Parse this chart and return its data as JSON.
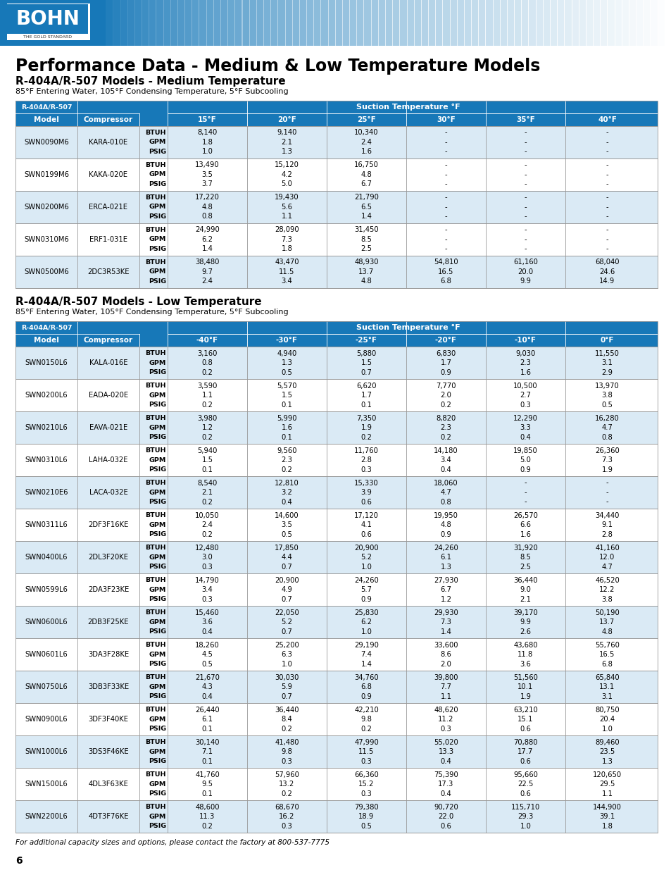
{
  "title": "Performance Data - Medium & Low Temperature Models",
  "medium_section_title": "R-404A/R-507 Models - Medium Temperature",
  "medium_subtitle": "85°F Entering Water, 105°F Condensing Temperature, 5°F Subcooling",
  "low_section_title": "R-404A/R-507 Models - Low Temperature",
  "low_subtitle": "85°F Entering Water, 105°F Condensing Temperature, 5°F Subcooling",
  "footer": "For additional capacity sizes and options, please contact the factory at 800-537-7775",
  "page_num": "6",
  "header_bg": "#1778b8",
  "row_alt_bg": "#daeaf5",
  "row_white_bg": "#ffffff",
  "border_color": "#aaaaaa",
  "header_text_color": "#ffffff",
  "medium_temp_cols": [
    "15°F",
    "20°F",
    "25°F",
    "30°F",
    "35°F",
    "40°F"
  ],
  "medium_suction_header": "Suction Temperature °F",
  "medium_rows": [
    [
      "SWN0090M6",
      "KARA-010E",
      [
        "8,140",
        "1.8",
        "1.0"
      ],
      [
        "9,140",
        "2.1",
        "1.3"
      ],
      [
        "10,340",
        "2.4",
        "1.6"
      ],
      [
        "-",
        "-",
        "-"
      ],
      [
        "-",
        "-",
        "-"
      ],
      [
        "-",
        "-",
        "-"
      ]
    ],
    [
      "SWN0199M6",
      "KAKA-020E",
      [
        "13,490",
        "3.5",
        "3.7"
      ],
      [
        "15,120",
        "4.2",
        "5.0"
      ],
      [
        "16,750",
        "4.8",
        "6.7"
      ],
      [
        "-",
        "-",
        "-"
      ],
      [
        "-",
        "-",
        "-"
      ],
      [
        "-",
        "-",
        "-"
      ]
    ],
    [
      "SWN0200M6",
      "ERCA-021E",
      [
        "17,220",
        "4.8",
        "0.8"
      ],
      [
        "19,430",
        "5.6",
        "1.1"
      ],
      [
        "21,790",
        "6.5",
        "1.4"
      ],
      [
        "-",
        "-",
        "-"
      ],
      [
        "-",
        "-",
        "-"
      ],
      [
        "-",
        "-",
        "-"
      ]
    ],
    [
      "SWN0310M6",
      "ERF1-031E",
      [
        "24,990",
        "6.2",
        "1.4"
      ],
      [
        "28,090",
        "7.3",
        "1.8"
      ],
      [
        "31,450",
        "8.5",
        "2.5"
      ],
      [
        "-",
        "-",
        "-"
      ],
      [
        "-",
        "-",
        "-"
      ],
      [
        "-",
        "-",
        "-"
      ]
    ],
    [
      "SWN0500M6",
      "2DC3R53KE",
      [
        "38,480",
        "9.7",
        "2.4"
      ],
      [
        "43,470",
        "11.5",
        "3.4"
      ],
      [
        "48,930",
        "13.7",
        "4.8"
      ],
      [
        "54,810",
        "16.5",
        "6.8"
      ],
      [
        "61,160",
        "20.0",
        "9.9"
      ],
      [
        "68,040",
        "24.6",
        "14.9"
      ]
    ]
  ],
  "low_temp_cols": [
    "-40°F",
    "-30°F",
    "-25°F",
    "-20°F",
    "-10°F",
    "0°F"
  ],
  "low_suction_header": "Suction Temperature °F",
  "low_rows": [
    [
      "SWN0150L6",
      "KALA-016E",
      [
        "3,160",
        "0.8",
        "0.2"
      ],
      [
        "4,940",
        "1.3",
        "0.5"
      ],
      [
        "5,880",
        "1.5",
        "0.7"
      ],
      [
        "6,830",
        "1.7",
        "0.9"
      ],
      [
        "9,030",
        "2.3",
        "1.6"
      ],
      [
        "11,550",
        "3.1",
        "2.9"
      ]
    ],
    [
      "SWN0200L6",
      "EADA-020E",
      [
        "3,590",
        "1.1",
        "0.2"
      ],
      [
        "5,570",
        "1.5",
        "0.1"
      ],
      [
        "6,620",
        "1.7",
        "0.1"
      ],
      [
        "7,770",
        "2.0",
        "0.2"
      ],
      [
        "10,500",
        "2.7",
        "0.3"
      ],
      [
        "13,970",
        "3.8",
        "0.5"
      ]
    ],
    [
      "SWN0210L6",
      "EAVA-021E",
      [
        "3,980",
        "1.2",
        "0.2"
      ],
      [
        "5,990",
        "1.6",
        "0.1"
      ],
      [
        "7,350",
        "1.9",
        "0.2"
      ],
      [
        "8,820",
        "2.3",
        "0.2"
      ],
      [
        "12,290",
        "3.3",
        "0.4"
      ],
      [
        "16,280",
        "4.7",
        "0.8"
      ]
    ],
    [
      "SWN0310L6",
      "LAHA-032E",
      [
        "5,940",
        "1.5",
        "0.1"
      ],
      [
        "9,560",
        "2.3",
        "0.2"
      ],
      [
        "11,760",
        "2.8",
        "0.3"
      ],
      [
        "14,180",
        "3.4",
        "0.4"
      ],
      [
        "19,850",
        "5.0",
        "0.9"
      ],
      [
        "26,360",
        "7.3",
        "1.9"
      ]
    ],
    [
      "SWN0210E6",
      "LACA-032E",
      [
        "8,540",
        "2.1",
        "0.2"
      ],
      [
        "12,810",
        "3.2",
        "0.4"
      ],
      [
        "15,330",
        "3.9",
        "0.6"
      ],
      [
        "18,060",
        "4.7",
        "0.8"
      ],
      [
        "-",
        "-",
        "-"
      ],
      [
        "-",
        "-",
        "-"
      ]
    ],
    [
      "SWN0311L6",
      "2DF3F16KE",
      [
        "10,050",
        "2.4",
        "0.2"
      ],
      [
        "14,600",
        "3.5",
        "0.5"
      ],
      [
        "17,120",
        "4.1",
        "0.6"
      ],
      [
        "19,950",
        "4.8",
        "0.9"
      ],
      [
        "26,570",
        "6.6",
        "1.6"
      ],
      [
        "34,440",
        "9.1",
        "2.8"
      ]
    ],
    [
      "SWN0400L6",
      "2DL3F20KE",
      [
        "12,480",
        "3.0",
        "0.3"
      ],
      [
        "17,850",
        "4.4",
        "0.7"
      ],
      [
        "20,900",
        "5.2",
        "1.0"
      ],
      [
        "24,260",
        "6.1",
        "1.3"
      ],
      [
        "31,920",
        "8.5",
        "2.5"
      ],
      [
        "41,160",
        "12.0",
        "4.7"
      ]
    ],
    [
      "SWN0599L6",
      "2DA3F23KE",
      [
        "14,790",
        "3.4",
        "0.3"
      ],
      [
        "20,900",
        "4.9",
        "0.7"
      ],
      [
        "24,260",
        "5.7",
        "0.9"
      ],
      [
        "27,930",
        "6.7",
        "1.2"
      ],
      [
        "36,440",
        "9.0",
        "2.1"
      ],
      [
        "46,520",
        "12.2",
        "3.8"
      ]
    ],
    [
      "SWN0600L6",
      "2DB3F25KE",
      [
        "15,460",
        "3.6",
        "0.4"
      ],
      [
        "22,050",
        "5.2",
        "0.7"
      ],
      [
        "25,830",
        "6.2",
        "1.0"
      ],
      [
        "29,930",
        "7.3",
        "1.4"
      ],
      [
        "39,170",
        "9.9",
        "2.6"
      ],
      [
        "50,190",
        "13.7",
        "4.8"
      ]
    ],
    [
      "SWN0601L6",
      "3DA3F28KE",
      [
        "18,260",
        "4.5",
        "0.5"
      ],
      [
        "25,200",
        "6.3",
        "1.0"
      ],
      [
        "29,190",
        "7.4",
        "1.4"
      ],
      [
        "33,600",
        "8.6",
        "2.0"
      ],
      [
        "43,680",
        "11.8",
        "3.6"
      ],
      [
        "55,760",
        "16.5",
        "6.8"
      ]
    ],
    [
      "SWN0750L6",
      "3DB3F33KE",
      [
        "21,670",
        "4.3",
        "0.4"
      ],
      [
        "30,030",
        "5.9",
        "0.7"
      ],
      [
        "34,760",
        "6.8",
        "0.9"
      ],
      [
        "39,800",
        "7.7",
        "1.1"
      ],
      [
        "51,560",
        "10.1",
        "1.9"
      ],
      [
        "65,840",
        "13.1",
        "3.1"
      ]
    ],
    [
      "SWN0900L6",
      "3DF3F40KE",
      [
        "26,440",
        "6.1",
        "0.1"
      ],
      [
        "36,440",
        "8.4",
        "0.2"
      ],
      [
        "42,210",
        "9.8",
        "0.2"
      ],
      [
        "48,620",
        "11.2",
        "0.3"
      ],
      [
        "63,210",
        "15.1",
        "0.6"
      ],
      [
        "80,750",
        "20.4",
        "1.0"
      ]
    ],
    [
      "SWN1000L6",
      "3DS3F46KE",
      [
        "30,140",
        "7.1",
        "0.1"
      ],
      [
        "41,480",
        "9.8",
        "0.3"
      ],
      [
        "47,990",
        "11.5",
        "0.3"
      ],
      [
        "55,020",
        "13.3",
        "0.4"
      ],
      [
        "70,880",
        "17.7",
        "0.6"
      ],
      [
        "89,460",
        "23.5",
        "1.3"
      ]
    ],
    [
      "SWN1500L6",
      "4DL3F63KE",
      [
        "41,760",
        "9.5",
        "0.1"
      ],
      [
        "57,960",
        "13.2",
        "0.2"
      ],
      [
        "66,360",
        "15.2",
        "0.3"
      ],
      [
        "75,390",
        "17.3",
        "0.4"
      ],
      [
        "95,660",
        "22.5",
        "0.6"
      ],
      [
        "120,650",
        "29.5",
        "1.1"
      ]
    ],
    [
      "SWN2200L6",
      "4DT3F76KE",
      [
        "48,600",
        "11.3",
        "0.2"
      ],
      [
        "68,670",
        "16.2",
        "0.3"
      ],
      [
        "79,380",
        "18.9",
        "0.5"
      ],
      [
        "90,720",
        "22.0",
        "0.6"
      ],
      [
        "115,710",
        "29.3",
        "1.0"
      ],
      [
        "144,900",
        "39.1",
        "1.8"
      ]
    ]
  ]
}
